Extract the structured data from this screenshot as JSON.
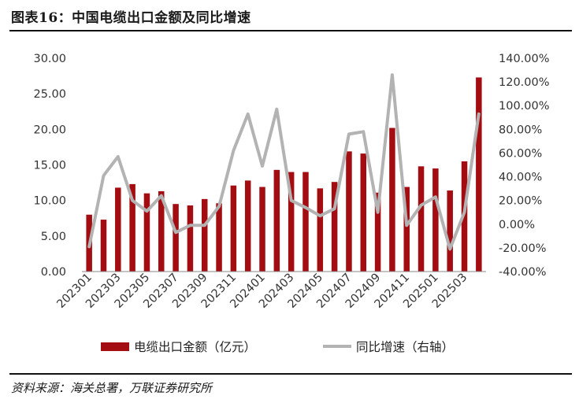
{
  "header": {
    "title": "图表16：中国电缆出口金额及同比增速"
  },
  "footer": {
    "source": "资料来源：海关总署，万联证券研究所"
  },
  "colors": {
    "bar": "#a30d12",
    "line": "#b3b3b3"
  },
  "chart_data": {
    "type": "bar",
    "categories": [
      "202301",
      "202302",
      "202303",
      "202304",
      "202305",
      "202306",
      "202307",
      "202308",
      "202309",
      "202310",
      "202311",
      "202312",
      "202401",
      "202402",
      "202403",
      "202404",
      "202405",
      "202406",
      "202407",
      "202408",
      "202409",
      "202410",
      "202411",
      "202412",
      "202501",
      "202502",
      "202503",
      "202504"
    ],
    "x_tick_labels": [
      "202301",
      "202303",
      "202305",
      "202307",
      "202309",
      "202311",
      "202401",
      "202403",
      "202405",
      "202407",
      "202409",
      "202411",
      "202501",
      "202503"
    ],
    "series": [
      {
        "name": "电缆出口金额（亿元）",
        "type": "bar",
        "axis": "left",
        "values": [
          8.0,
          7.3,
          11.8,
          12.3,
          11.0,
          11.3,
          9.5,
          9.3,
          10.2,
          9.6,
          12.1,
          12.8,
          11.9,
          14.3,
          14.0,
          14.0,
          11.7,
          12.6,
          16.9,
          16.6,
          11.1,
          20.2,
          11.9,
          14.8,
          14.5,
          11.4,
          15.5,
          27.3
        ]
      },
      {
        "name": "同比增速（右轴）",
        "type": "line",
        "axis": "right",
        "values": [
          -19,
          41,
          57,
          20,
          11,
          24,
          -7,
          -1,
          -1,
          15,
          62,
          93,
          49,
          97,
          20,
          14,
          7,
          13,
          76,
          78,
          10,
          126,
          -1,
          16,
          23,
          -21,
          10,
          93
        ]
      }
    ],
    "y_left": {
      "lim": [
        0,
        30
      ],
      "ticks": [
        "0.00",
        "5.00",
        "10.00",
        "15.00",
        "20.00",
        "25.00",
        "30.00"
      ]
    },
    "y_right": {
      "lim": [
        -40,
        140
      ],
      "ticks": [
        "-40.00%",
        "-20.00%",
        "0.00%",
        "20.00%",
        "40.00%",
        "60.00%",
        "80.00%",
        "100.00%",
        "120.00%",
        "140.00%"
      ]
    },
    "grid": false,
    "legend_position": "bottom-center"
  }
}
